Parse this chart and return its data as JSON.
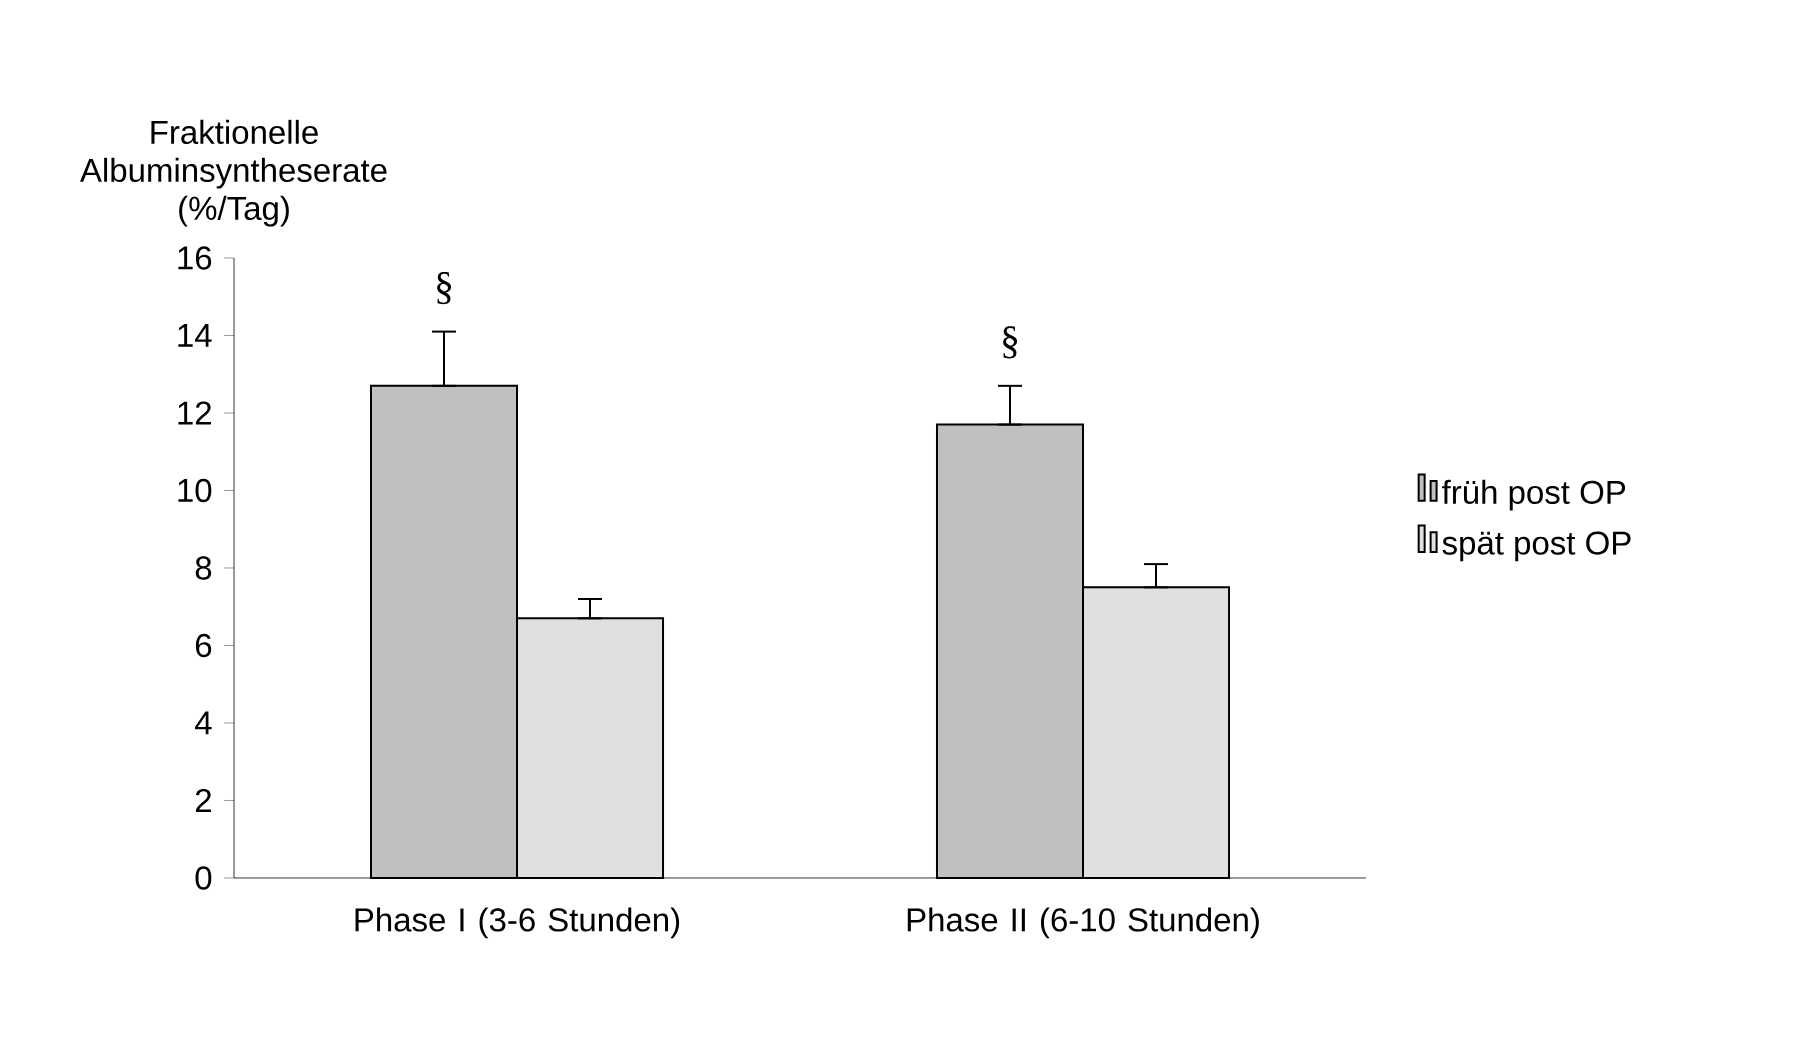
{
  "chart_data": {
    "type": "bar",
    "ylabel": "Fraktionelle Albuminsyntheserate (%/Tag)",
    "categories": [
      "Phase I (3-6 Stunden)",
      "Phase II (6-10 Stunden)"
    ],
    "series": [
      {
        "name": "früh post OP",
        "color": "#c0c0c0",
        "values": [
          12.7,
          11.7
        ],
        "errors": [
          [
            12.7,
            14.1
          ],
          [
            11.7,
            12.7
          ]
        ]
      },
      {
        "name": "spät post OP",
        "color": "#e0e0e0",
        "values": [
          6.7,
          7.5
        ],
        "errors": [
          [
            6.7,
            7.2
          ],
          [
            7.5,
            8.1
          ]
        ]
      }
    ],
    "ylim": [
      0,
      16
    ],
    "yticks": [
      0,
      2,
      4,
      6,
      8,
      10,
      12,
      14,
      16
    ],
    "legend": "right",
    "annotations": [
      "§",
      "§"
    ]
  }
}
